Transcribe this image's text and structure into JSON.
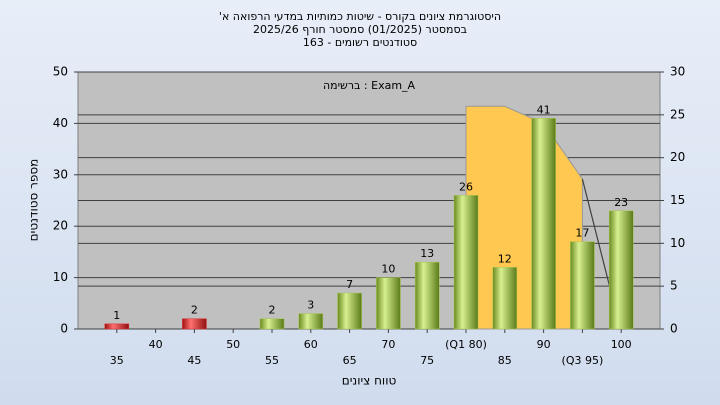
{
  "chart_data": {
    "type": "bar",
    "title": [
      "היסטוגרמת ציונים בקורס - שיטות כמותיות במדעי הרפואה א'",
      "בסמסטר (01/2025) סמסטר חורף 2025/26",
      "סטודנטים רשומים - 163"
    ],
    "annotation": "ברשימה : Exam_A",
    "x_label": "טווח ציונים",
    "y_label": "מספר סטודנטים",
    "x": [
      35,
      40,
      45,
      50,
      55,
      60,
      65,
      70,
      75,
      80,
      85,
      90,
      95,
      100
    ],
    "values": [
      1,
      null,
      2,
      null,
      2,
      3,
      7,
      10,
      13,
      26,
      12,
      41,
      17,
      23
    ],
    "colors": [
      "#e03030",
      null,
      "#e03030",
      null,
      "#a8c850",
      "#a8c850",
      "#a8c850",
      "#a8c850",
      "#a8c850",
      "#a8c850",
      "#a8c850",
      "#a8c850",
      "#a8c850",
      "#a8c850"
    ],
    "xlim": [
      30,
      105
    ],
    "xticks": [
      35,
      40,
      45,
      50,
      55,
      60,
      65,
      70,
      75,
      {
        "value": 80,
        "label": "(Q1 80)"
      },
      85,
      90,
      {
        "value": 95,
        "label": "(Q3 95)"
      },
      100
    ],
    "ylim": [
      0,
      50
    ],
    "yticks": [
      0,
      10,
      20,
      30,
      40,
      50
    ],
    "y2lim": [
      0,
      30
    ],
    "y2ticks": [
      0,
      5,
      10,
      15,
      20,
      25,
      30
    ],
    "grid": true,
    "overlay": [
      {
        "type": "area",
        "axis": "y2",
        "color": "#ffc850",
        "x": [
          80,
          85,
          90,
          95
        ],
        "values": [
          26,
          26,
          24,
          17.5
        ]
      },
      {
        "type": "line",
        "axis": "y2",
        "color": "#404040",
        "x": [
          95,
          98.5
        ],
        "values": [
          17.5,
          5
        ]
      }
    ]
  }
}
